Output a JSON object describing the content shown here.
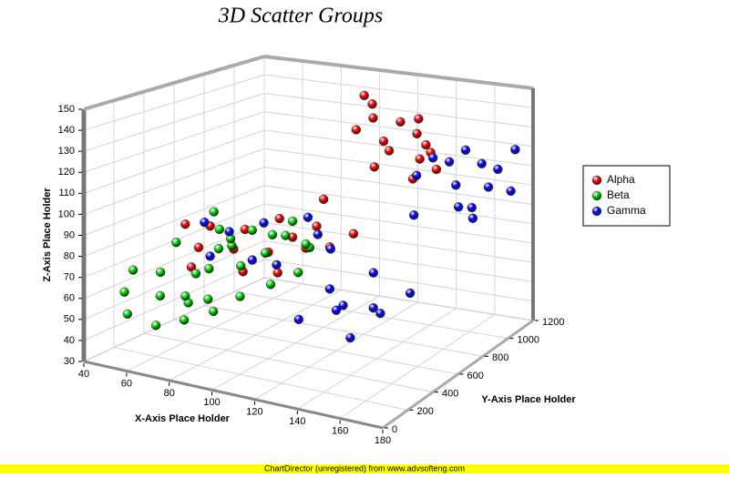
{
  "chart_data": {
    "type": "scatter3d",
    "title": "3D Scatter Groups",
    "x_label": "X-Axis Place Holder",
    "y_label": "Y-Axis Place Holder",
    "z_label": "Z-Axis Place Holder",
    "xlim": [
      40,
      180
    ],
    "xticks": [
      40,
      60,
      80,
      100,
      120,
      140,
      160,
      180
    ],
    "ylim": [
      0,
      1200
    ],
    "yticks": [
      0,
      200,
      400,
      600,
      800,
      1000,
      1200
    ],
    "zlim": [
      30,
      150
    ],
    "zticks": [
      30,
      40,
      50,
      60,
      70,
      80,
      90,
      100,
      110,
      120,
      130,
      140,
      150
    ],
    "grid": true,
    "legend": "right",
    "footer": "ChartDirector (unregistered) from www.advsofteng.com",
    "series": [
      {
        "name": "Alpha",
        "color": "#ff0000",
        "x": [
          110,
          112,
          118,
          125,
          108,
          130,
          115,
          122,
          135,
          128,
          120,
          140,
          132,
          126,
          138,
          100,
          60,
          65,
          70,
          75,
          80,
          85,
          90,
          95,
          100,
          105,
          110,
          70,
          88,
          115,
          98
        ],
        "y": [
          950,
          980,
          900,
          1000,
          920,
          1050,
          1020,
          960,
          1080,
          1100,
          880,
          1050,
          990,
          1120,
          1000,
          800,
          400,
          500,
          350,
          600,
          450,
          700,
          550,
          650,
          750,
          600,
          700,
          300,
          400,
          800,
          500
        ],
        "z": [
          145,
          140,
          136,
          132,
          128,
          125,
          120,
          118,
          115,
          110,
          112,
          108,
          104,
          130,
          122,
          95,
          88,
          85,
          80,
          82,
          78,
          86,
          75,
          80,
          83,
          78,
          76,
          72,
          70,
          80,
          68
        ]
      },
      {
        "name": "Beta",
        "color": "#00dd00",
        "x": [
          42,
          45,
          48,
          50,
          55,
          58,
          60,
          62,
          65,
          68,
          70,
          72,
          75,
          78,
          80,
          82,
          85,
          88,
          90,
          92,
          95,
          98,
          100,
          105,
          108,
          52,
          66,
          56,
          74,
          84
        ],
        "y": [
          300,
          200,
          400,
          150,
          300,
          500,
          200,
          600,
          350,
          450,
          250,
          550,
          650,
          300,
          500,
          400,
          600,
          700,
          350,
          550,
          650,
          450,
          700,
          600,
          500,
          450,
          550,
          650,
          200,
          250
        ],
        "z": [
          65,
          58,
          62,
          50,
          55,
          60,
          45,
          70,
          52,
          66,
          48,
          75,
          80,
          58,
          68,
          85,
          72,
          78,
          60,
          84,
          88,
          64,
          74,
          80,
          70,
          76,
          82,
          86,
          62,
          55
        ]
      },
      {
        "name": "Gamma",
        "color": "#0000ff",
        "x": [
          140,
          145,
          150,
          155,
          160,
          165,
          170,
          175,
          148,
          158,
          168,
          172,
          142,
          162,
          55,
          60,
          65,
          70,
          75,
          80,
          90,
          100,
          110,
          120,
          125,
          130,
          135,
          140,
          145,
          150,
          115,
          85
        ],
        "y": [
          900,
          950,
          1000,
          1050,
          1100,
          1150,
          1000,
          1100,
          1080,
          950,
          900,
          1180,
          850,
          1000,
          600,
          700,
          500,
          800,
          650,
          750,
          900,
          850,
          700,
          600,
          800,
          500,
          650,
          400,
          550,
          700,
          400,
          900
        ],
        "z": [
          110,
          118,
          115,
          120,
          112,
          108,
          105,
          100,
          100,
          95,
          98,
          118,
          92,
          88,
          82,
          75,
          70,
          78,
          65,
          60,
          72,
          68,
          55,
          50,
          62,
          58,
          52,
          48,
          55,
          60,
          52,
          80
        ]
      }
    ]
  }
}
